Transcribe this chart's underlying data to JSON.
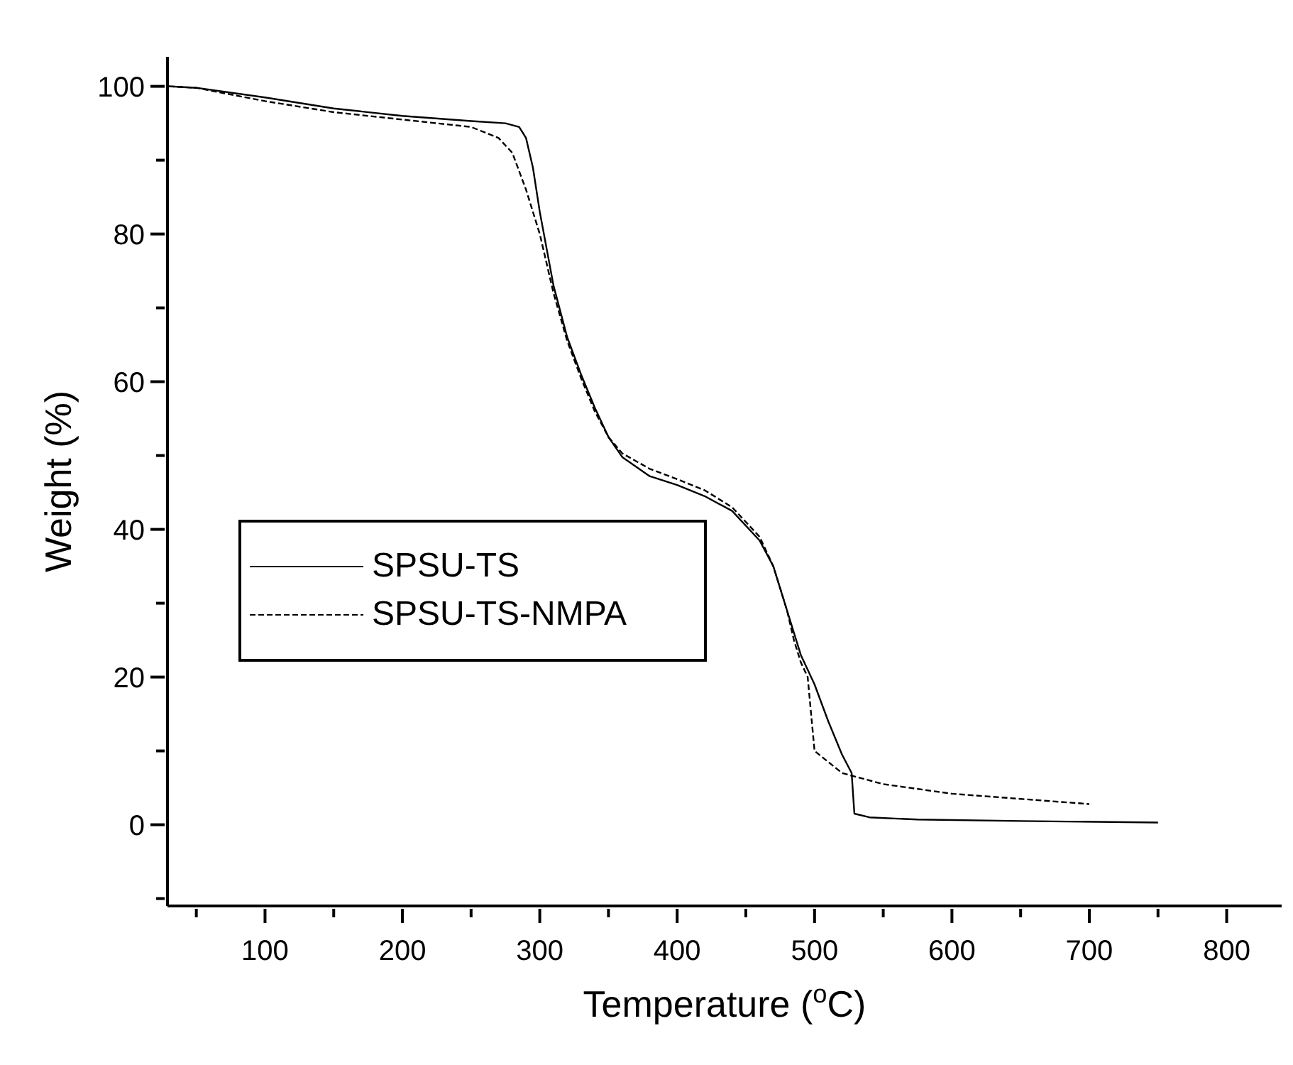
{
  "chart_data": {
    "type": "line",
    "xlabel": "Temperature ($^{o}$C)",
    "ylabel": "Weight (%)",
    "xlim": [
      29,
      840
    ],
    "ylim": [
      -11,
      104
    ],
    "xticks": [
      {
        "value": 50,
        "label": null
      },
      100,
      {
        "value": 150,
        "label": null
      },
      200,
      {
        "value": 250,
        "label": null
      },
      300,
      {
        "value": 350,
        "label": null
      },
      400,
      {
        "value": 450,
        "label": null
      },
      500,
      {
        "value": 550,
        "label": null
      },
      600,
      {
        "value": 650,
        "label": null
      },
      700,
      {
        "value": 750,
        "label": null
      },
      800
    ],
    "yticks": [
      {
        "value": -10,
        "label": null
      },
      0,
      {
        "value": 10,
        "label": null
      },
      20,
      {
        "value": 30,
        "label": null
      },
      40,
      {
        "value": 50,
        "label": null
      },
      60,
      {
        "value": 70,
        "label": null
      },
      80,
      {
        "value": 90,
        "label": null
      },
      100
    ],
    "legend": "left",
    "marker": "none",
    "series": [
      {
        "name": "SPSU-TS",
        "color": "#000000",
        "line_style": "solid",
        "x": [
          30,
          50,
          100,
          150,
          200,
          250,
          275,
          285,
          290,
          295,
          300,
          310,
          320,
          330,
          340,
          350,
          360,
          380,
          400,
          420,
          440,
          460,
          470,
          480,
          490,
          500,
          510,
          520,
          527,
          529,
          540,
          575,
          650,
          750
        ],
        "values": [
          100,
          99.8,
          98.5,
          97,
          96,
          95.3,
          95,
          94.5,
          93,
          89,
          83,
          73,
          66,
          61,
          56.5,
          52.5,
          49.8,
          47.2,
          46,
          44.5,
          42.5,
          38.5,
          35,
          29,
          23,
          19,
          14,
          9.5,
          7,
          1.5,
          1,
          0.7,
          0.5,
          0.3
        ]
      },
      {
        "name": "SPSU-TS-NMPA",
        "color": "#000000",
        "line_style": "dashed",
        "x": [
          30,
          50,
          100,
          150,
          200,
          250,
          270,
          280,
          290,
          300,
          310,
          320,
          330,
          340,
          350,
          360,
          380,
          400,
          420,
          440,
          460,
          470,
          480,
          485,
          490,
          495,
          500,
          520,
          550,
          600,
          650,
          700
        ],
        "values": [
          100,
          99.8,
          98,
          96.5,
          95.5,
          94.5,
          93,
          91,
          86,
          80,
          72,
          65.5,
          60.5,
          56,
          52.5,
          50.3,
          48.2,
          46.8,
          45.3,
          43,
          39,
          35,
          29,
          25,
          22,
          20,
          10,
          7,
          5.5,
          4.2,
          3.5,
          2.8
        ]
      }
    ]
  }
}
